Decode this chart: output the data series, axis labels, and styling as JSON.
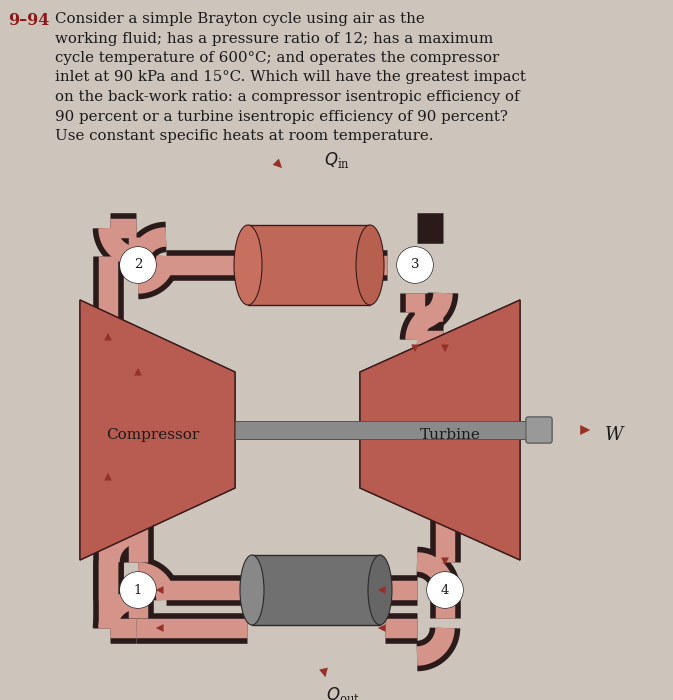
{
  "background_color": "#cdc5bc",
  "title_number_color": "#8b1a1a",
  "compressor_color": "#b85c52",
  "turbine_color": "#b85c52",
  "pipe_color": "#d4948a",
  "pipe_outline_color": "#2a1a1a",
  "hx_hot_color": "#c06858",
  "hx_cold_color": "#888888",
  "shaft_color": "#8a8a8a",
  "arrow_color": "#963028",
  "text_color": "#1a1a1a",
  "label_compressor": "Compressor",
  "label_turbine": "Turbine",
  "label_W": "W",
  "node_labels": [
    "1",
    "2",
    "3",
    "4"
  ],
  "text_lines": [
    "Consider a simple Brayton cycle using air as the",
    "working fluid; has a pressure ratio of 12; has a maximum",
    "cycle temperature of 600°C; and operates the compressor",
    "inlet at 90 kPa and 15°C. Which will have the greatest impact",
    "on the back-work ratio: a compressor isentropic efficiency of",
    "90 percent or a turbine isentropic efficiency of 90 percent?",
    "Use constant specific heats at room temperature."
  ],
  "fig_width": 6.73,
  "fig_height": 7.0,
  "dpi": 100
}
